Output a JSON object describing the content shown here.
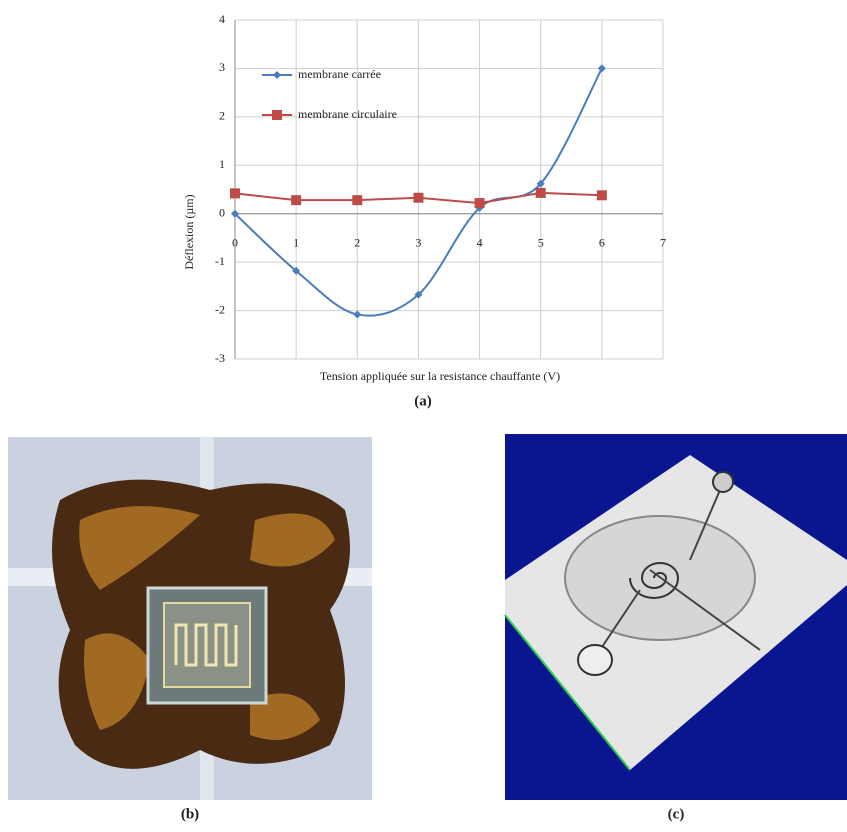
{
  "chart_data": {
    "type": "line",
    "x_label": "Tension appliquée sur la resistance chauffante (V)",
    "y_label": "Déflexion (µm)",
    "x": [
      0,
      1,
      2,
      3,
      4,
      5,
      6
    ],
    "series": [
      {
        "name": "membrane carrée",
        "color": "#4a7ebb",
        "marker": "diamond",
        "smooth": true,
        "values": [
          0,
          -1.18,
          -2.08,
          -1.67,
          0.12,
          0.62,
          3.0
        ]
      },
      {
        "name": "membrane circulaire",
        "color": "#be4b48",
        "marker": "square",
        "smooth": false,
        "values": [
          0.42,
          0.28,
          0.28,
          0.33,
          0.22,
          0.43,
          0.38
        ]
      }
    ],
    "xlim": [
      0,
      7
    ],
    "xticks": [
      0,
      1,
      2,
      3,
      4,
      5,
      6,
      7
    ],
    "ylim": [
      -3,
      4
    ],
    "yticks": [
      -3,
      -2,
      -1,
      0,
      1,
      2,
      3,
      4
    ],
    "grid": true,
    "legend": "top-left"
  },
  "captions": {
    "a": "(a)",
    "b": "(b)",
    "c": "(c)"
  }
}
